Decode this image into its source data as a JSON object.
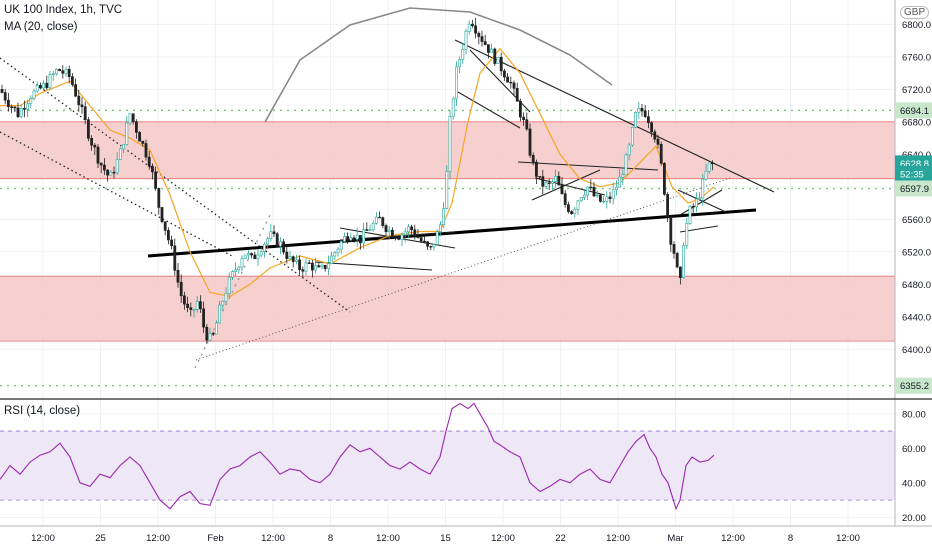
{
  "header": {
    "title": "UK 100 Index, 1h, TVC",
    "indicator": "MA (20, close)",
    "currency": "GBP"
  },
  "rsi_panel": {
    "label": "RSI (14, close)"
  },
  "price_axis": {
    "ticks": [
      "6800.0",
      "6760.0",
      "6720.0",
      "6680.0",
      "6640.0",
      "6600.0",
      "6560.0",
      "6520.0",
      "6480.0",
      "6440.0",
      "6400.0"
    ],
    "badges": [
      {
        "text": "6694.1",
        "value": 6694.1,
        "color": "#c8e6c9"
      },
      {
        "text": "6628.8",
        "value": 6628.8,
        "color": "#26a69a"
      },
      {
        "text": "52:35",
        "value": 6616,
        "color": "#26a69a"
      },
      {
        "text": "6597.9",
        "value": 6597.9,
        "color": "#c8e6c9"
      },
      {
        "text": "6355.2",
        "value": 6355.2,
        "color": "#c8e6c9"
      }
    ]
  },
  "rsi_axis": {
    "ticks": [
      "80.00",
      "60.00",
      "40.00",
      "20.00"
    ]
  },
  "time_axis": {
    "ticks": [
      "12:00",
      "25",
      "12:00",
      "Feb",
      "12:00",
      "8",
      "12:00",
      "15",
      "12:00",
      "22",
      "12:00",
      "Mar",
      "12:00",
      "8",
      "12:00"
    ]
  },
  "chart_data": {
    "type": "candlestick",
    "title": "UK 100 Index, 1h, TVC",
    "price_range": [
      6340,
      6830
    ],
    "rsi_range": [
      15,
      88
    ],
    "zones": [
      {
        "from": 6610,
        "to": 6680,
        "color": "#f4c7c7"
      },
      {
        "from": 6410,
        "to": 6490,
        "color": "#f4c7c7"
      }
    ],
    "horizontal_levels": [
      6694.1,
      6597.9,
      6355.2
    ],
    "rsi_bands": [
      30,
      70
    ],
    "price_path": [
      [
        0,
        6720
      ],
      [
        8,
        6705
      ],
      [
        18,
        6690
      ],
      [
        30,
        6712
      ],
      [
        45,
        6725
      ],
      [
        58,
        6745
      ],
      [
        70,
        6735
      ],
      [
        80,
        6700
      ],
      [
        90,
        6660
      ],
      [
        100,
        6630
      ],
      [
        110,
        6610
      ],
      [
        120,
        6640
      ],
      [
        130,
        6690
      ],
      [
        140,
        6660
      ],
      [
        150,
        6630
      ],
      [
        158,
        6580
      ],
      [
        165,
        6550
      ],
      [
        172,
        6520
      ],
      [
        180,
        6470
      ],
      [
        190,
        6440
      ],
      [
        198,
        6460
      ],
      [
        205,
        6420
      ],
      [
        212,
        6410
      ],
      [
        220,
        6450
      ],
      [
        228,
        6480
      ],
      [
        236,
        6500
      ],
      [
        244,
        6520
      ],
      [
        252,
        6510
      ],
      [
        260,
        6525
      ],
      [
        270,
        6540
      ],
      [
        280,
        6530
      ],
      [
        290,
        6510
      ],
      [
        300,
        6500
      ],
      [
        310,
        6505
      ],
      [
        320,
        6495
      ],
      [
        330,
        6510
      ],
      [
        340,
        6530
      ],
      [
        350,
        6545
      ],
      [
        360,
        6535
      ],
      [
        370,
        6550
      ],
      [
        380,
        6560
      ],
      [
        390,
        6545
      ],
      [
        400,
        6540
      ],
      [
        410,
        6550
      ],
      [
        420,
        6535
      ],
      [
        430,
        6520
      ],
      [
        440,
        6550
      ],
      [
        446,
        6600
      ],
      [
        450,
        6680
      ],
      [
        456,
        6740
      ],
      [
        462,
        6770
      ],
      [
        470,
        6810
      ],
      [
        478,
        6790
      ],
      [
        486,
        6775
      ],
      [
        494,
        6760
      ],
      [
        502,
        6745
      ],
      [
        510,
        6730
      ],
      [
        518,
        6700
      ],
      [
        526,
        6670
      ],
      [
        532,
        6630
      ],
      [
        540,
        6605
      ],
      [
        548,
        6600
      ],
      [
        556,
        6610
      ],
      [
        564,
        6580
      ],
      [
        572,
        6570
      ],
      [
        580,
        6590
      ],
      [
        588,
        6600
      ],
      [
        596,
        6585
      ],
      [
        604,
        6580
      ],
      [
        612,
        6590
      ],
      [
        620,
        6610
      ],
      [
        628,
        6640
      ],
      [
        636,
        6690
      ],
      [
        644,
        6695
      ],
      [
        650,
        6680
      ],
      [
        656,
        6660
      ],
      [
        662,
        6620
      ],
      [
        666,
        6580
      ],
      [
        670,
        6540
      ],
      [
        674,
        6520
      ],
      [
        680,
        6475
      ],
      [
        684,
        6540
      ],
      [
        690,
        6570
      ],
      [
        696,
        6580
      ],
      [
        702,
        6600
      ],
      [
        708,
        6625
      ],
      [
        714,
        6629
      ]
    ],
    "ma_path": [
      [
        0,
        6700
      ],
      [
        20,
        6700
      ],
      [
        40,
        6715
      ],
      [
        60,
        6725
      ],
      [
        70,
        6730
      ],
      [
        90,
        6700
      ],
      [
        110,
        6670
      ],
      [
        130,
        6660
      ],
      [
        150,
        6645
      ],
      [
        170,
        6590
      ],
      [
        190,
        6520
      ],
      [
        210,
        6470
      ],
      [
        230,
        6465
      ],
      [
        250,
        6480
      ],
      [
        270,
        6500
      ],
      [
        300,
        6515
      ],
      [
        330,
        6505
      ],
      [
        360,
        6525
      ],
      [
        390,
        6540
      ],
      [
        420,
        6545
      ],
      [
        440,
        6545
      ],
      [
        452,
        6580
      ],
      [
        468,
        6680
      ],
      [
        480,
        6740
      ],
      [
        500,
        6770
      ],
      [
        520,
        6740
      ],
      [
        540,
        6690
      ],
      [
        560,
        6640
      ],
      [
        580,
        6610
      ],
      [
        600,
        6600
      ],
      [
        620,
        6605
      ],
      [
        640,
        6630
      ],
      [
        656,
        6650
      ],
      [
        672,
        6600
      ],
      [
        688,
        6580
      ],
      [
        700,
        6585
      ],
      [
        714,
        6600
      ]
    ],
    "rsi_path": [
      [
        0,
        42
      ],
      [
        10,
        50
      ],
      [
        20,
        45
      ],
      [
        30,
        52
      ],
      [
        40,
        56
      ],
      [
        50,
        58
      ],
      [
        60,
        63
      ],
      [
        70,
        55
      ],
      [
        80,
        40
      ],
      [
        90,
        38
      ],
      [
        100,
        45
      ],
      [
        110,
        43
      ],
      [
        120,
        50
      ],
      [
        130,
        55
      ],
      [
        140,
        50
      ],
      [
        150,
        40
      ],
      [
        160,
        30
      ],
      [
        170,
        25
      ],
      [
        180,
        32
      ],
      [
        190,
        35
      ],
      [
        200,
        28
      ],
      [
        210,
        27
      ],
      [
        220,
        42
      ],
      [
        230,
        48
      ],
      [
        240,
        50
      ],
      [
        250,
        55
      ],
      [
        260,
        58
      ],
      [
        270,
        52
      ],
      [
        280,
        45
      ],
      [
        290,
        48
      ],
      [
        300,
        47
      ],
      [
        310,
        42
      ],
      [
        320,
        40
      ],
      [
        330,
        45
      ],
      [
        340,
        55
      ],
      [
        350,
        62
      ],
      [
        360,
        58
      ],
      [
        370,
        60
      ],
      [
        380,
        55
      ],
      [
        390,
        50
      ],
      [
        400,
        48
      ],
      [
        410,
        52
      ],
      [
        420,
        48
      ],
      [
        430,
        45
      ],
      [
        440,
        55
      ],
      [
        446,
        70
      ],
      [
        452,
        83
      ],
      [
        460,
        86
      ],
      [
        468,
        83
      ],
      [
        474,
        86
      ],
      [
        480,
        80
      ],
      [
        488,
        72
      ],
      [
        494,
        64
      ],
      [
        500,
        62
      ],
      [
        510,
        58
      ],
      [
        520,
        55
      ],
      [
        530,
        40
      ],
      [
        540,
        35
      ],
      [
        550,
        38
      ],
      [
        560,
        42
      ],
      [
        570,
        40
      ],
      [
        580,
        45
      ],
      [
        590,
        48
      ],
      [
        600,
        42
      ],
      [
        610,
        40
      ],
      [
        620,
        50
      ],
      [
        628,
        58
      ],
      [
        636,
        64
      ],
      [
        644,
        68
      ],
      [
        650,
        60
      ],
      [
        656,
        55
      ],
      [
        662,
        45
      ],
      [
        668,
        40
      ],
      [
        676,
        25
      ],
      [
        680,
        30
      ],
      [
        686,
        50
      ],
      [
        692,
        55
      ],
      [
        700,
        52
      ],
      [
        708,
        53
      ],
      [
        714,
        56
      ]
    ]
  }
}
